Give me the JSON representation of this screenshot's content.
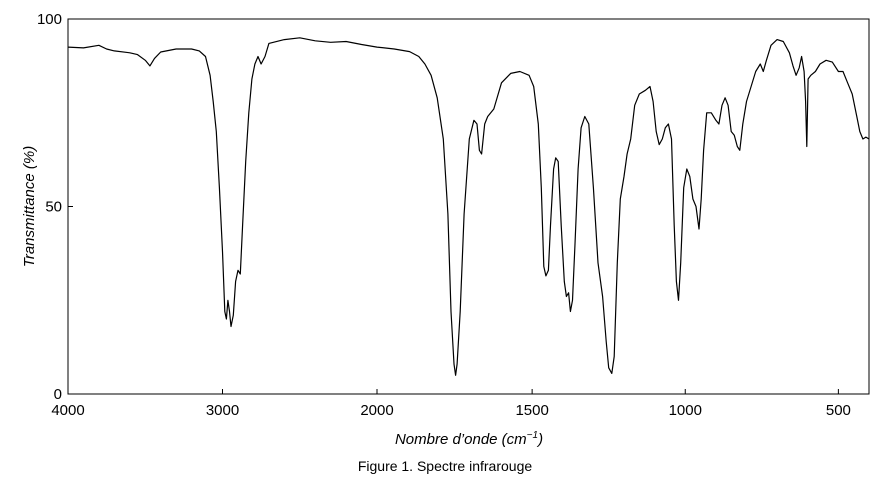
{
  "chart_data": {
    "type": "line",
    "title": "",
    "xlabel_main": "Nombre d’onde (cm",
    "xlabel_sup": "−1",
    "xlabel_close": ")",
    "ylabel": "Transmittance (%)",
    "xlim": [
      4000,
      400
    ],
    "x_reversed": true,
    "ylim": [
      0,
      100
    ],
    "x_ticks": [
      4000,
      3000,
      2000,
      1500,
      1000,
      500
    ],
    "x_ticks_break": 2000,
    "x_scale_note": "axis compressed above 2000 cm-1 (standard IR spectrum)",
    "y_ticks": [
      0,
      50,
      100
    ],
    "grid": false,
    "legend": "none",
    "line_color": "#000000",
    "series": [
      {
        "points": [
          [
            4000,
            92.5
          ],
          [
            3900,
            92.3
          ],
          [
            3800,
            93.0
          ],
          [
            3750,
            92.0
          ],
          [
            3700,
            91.5
          ],
          [
            3600,
            91.0
          ],
          [
            3550,
            90.5
          ],
          [
            3500,
            89.0
          ],
          [
            3470,
            87.5
          ],
          [
            3440,
            89.5
          ],
          [
            3400,
            91.2
          ],
          [
            3300,
            92.0
          ],
          [
            3200,
            92.0
          ],
          [
            3150,
            91.5
          ],
          [
            3110,
            90.0
          ],
          [
            3080,
            85.0
          ],
          [
            3060,
            78.0
          ],
          [
            3040,
            70.0
          ],
          [
            3020,
            55.0
          ],
          [
            3000,
            38.0
          ],
          [
            2985,
            22.0
          ],
          [
            2975,
            20.0
          ],
          [
            2965,
            25.0
          ],
          [
            2955,
            22.0
          ],
          [
            2945,
            18.0
          ],
          [
            2930,
            21.0
          ],
          [
            2915,
            30.0
          ],
          [
            2900,
            33.0
          ],
          [
            2885,
            32.0
          ],
          [
            2870,
            45.0
          ],
          [
            2850,
            62.0
          ],
          [
            2830,
            75.0
          ],
          [
            2810,
            84.0
          ],
          [
            2790,
            88.0
          ],
          [
            2770,
            90.0
          ],
          [
            2750,
            88.0
          ],
          [
            2725,
            90.0
          ],
          [
            2700,
            93.5
          ],
          [
            2600,
            94.5
          ],
          [
            2500,
            95.0
          ],
          [
            2400,
            94.2
          ],
          [
            2300,
            93.8
          ],
          [
            2200,
            94.0
          ],
          [
            2100,
            93.2
          ],
          [
            2000,
            92.5
          ],
          [
            1950,
            92.0
          ],
          [
            1900,
            91.3
          ],
          [
            1870,
            90.0
          ],
          [
            1850,
            88.0
          ],
          [
            1830,
            85.0
          ],
          [
            1810,
            79.0
          ],
          [
            1790,
            68.0
          ],
          [
            1775,
            48.0
          ],
          [
            1765,
            22.0
          ],
          [
            1755,
            8.0
          ],
          [
            1750,
            5.0
          ],
          [
            1745,
            8.0
          ],
          [
            1735,
            22.0
          ],
          [
            1722,
            48.0
          ],
          [
            1705,
            68.0
          ],
          [
            1690,
            73.0
          ],
          [
            1680,
            72.0
          ],
          [
            1672,
            65.0
          ],
          [
            1665,
            64.0
          ],
          [
            1655,
            72.0
          ],
          [
            1645,
            74.0
          ],
          [
            1625,
            76.0
          ],
          [
            1600,
            83.0
          ],
          [
            1570,
            85.5
          ],
          [
            1540,
            86.0
          ],
          [
            1510,
            85.0
          ],
          [
            1495,
            82.0
          ],
          [
            1480,
            72.0
          ],
          [
            1470,
            55.0
          ],
          [
            1462,
            34.0
          ],
          [
            1455,
            31.5
          ],
          [
            1447,
            33.0
          ],
          [
            1440,
            45.0
          ],
          [
            1430,
            60.0
          ],
          [
            1423,
            63.0
          ],
          [
            1415,
            62.0
          ],
          [
            1405,
            45.0
          ],
          [
            1395,
            30.0
          ],
          [
            1388,
            26.0
          ],
          [
            1381,
            27.0
          ],
          [
            1375,
            22.0
          ],
          [
            1368,
            25.0
          ],
          [
            1360,
            40.0
          ],
          [
            1350,
            60.0
          ],
          [
            1340,
            71.0
          ],
          [
            1328,
            74.0
          ],
          [
            1315,
            72.0
          ],
          [
            1300,
            55.0
          ],
          [
            1285,
            35.0
          ],
          [
            1270,
            26.0
          ],
          [
            1258,
            14.0
          ],
          [
            1250,
            7.0
          ],
          [
            1240,
            5.5
          ],
          [
            1232,
            10.0
          ],
          [
            1222,
            35.0
          ],
          [
            1212,
            52.0
          ],
          [
            1200,
            58.0
          ],
          [
            1190,
            64.0
          ],
          [
            1178,
            68.0
          ],
          [
            1165,
            77.0
          ],
          [
            1150,
            80.0
          ],
          [
            1130,
            81.0
          ],
          [
            1115,
            82.0
          ],
          [
            1105,
            78.0
          ],
          [
            1095,
            70.0
          ],
          [
            1085,
            66.5
          ],
          [
            1075,
            68.0
          ],
          [
            1065,
            71.0
          ],
          [
            1055,
            72.0
          ],
          [
            1045,
            68.0
          ],
          [
            1036,
            45.0
          ],
          [
            1029,
            30.0
          ],
          [
            1022,
            25.0
          ],
          [
            1015,
            35.0
          ],
          [
            1005,
            55.0
          ],
          [
            995,
            60.0
          ],
          [
            985,
            58.0
          ],
          [
            975,
            52.0
          ],
          [
            965,
            50.0
          ],
          [
            955,
            44.0
          ],
          [
            948,
            52.0
          ],
          [
            940,
            65.0
          ],
          [
            930,
            75.0
          ],
          [
            915,
            75.0
          ],
          [
            900,
            73.0
          ],
          [
            890,
            72.0
          ],
          [
            880,
            77.0
          ],
          [
            870,
            79.0
          ],
          [
            860,
            77.0
          ],
          [
            850,
            70.0
          ],
          [
            840,
            69.0
          ],
          [
            830,
            66.0
          ],
          [
            822,
            65.0
          ],
          [
            812,
            72.0
          ],
          [
            800,
            78.0
          ],
          [
            785,
            82.0
          ],
          [
            770,
            86.0
          ],
          [
            755,
            88.0
          ],
          [
            745,
            86.0
          ],
          [
            735,
            89.0
          ],
          [
            720,
            93.0
          ],
          [
            700,
            94.5
          ],
          [
            680,
            94.0
          ],
          [
            660,
            91.0
          ],
          [
            648,
            87.5
          ],
          [
            638,
            85.0
          ],
          [
            628,
            87.0
          ],
          [
            620,
            90.0
          ],
          [
            612,
            86.0
          ],
          [
            607,
            78.0
          ],
          [
            603,
            66.0
          ],
          [
            599,
            84.0
          ],
          [
            590,
            85.0
          ],
          [
            575,
            86.0
          ],
          [
            560,
            88.0
          ],
          [
            540,
            89.0
          ],
          [
            520,
            88.5
          ],
          [
            500,
            86.0
          ],
          [
            485,
            86.0
          ],
          [
            470,
            83.0
          ],
          [
            455,
            80.0
          ],
          [
            440,
            74.0
          ],
          [
            430,
            70.0
          ],
          [
            420,
            68.0
          ],
          [
            410,
            68.5
          ],
          [
            400,
            68.0
          ]
        ]
      }
    ]
  },
  "figure": {
    "caption": "Figure 1. Spectre infrarouge"
  }
}
